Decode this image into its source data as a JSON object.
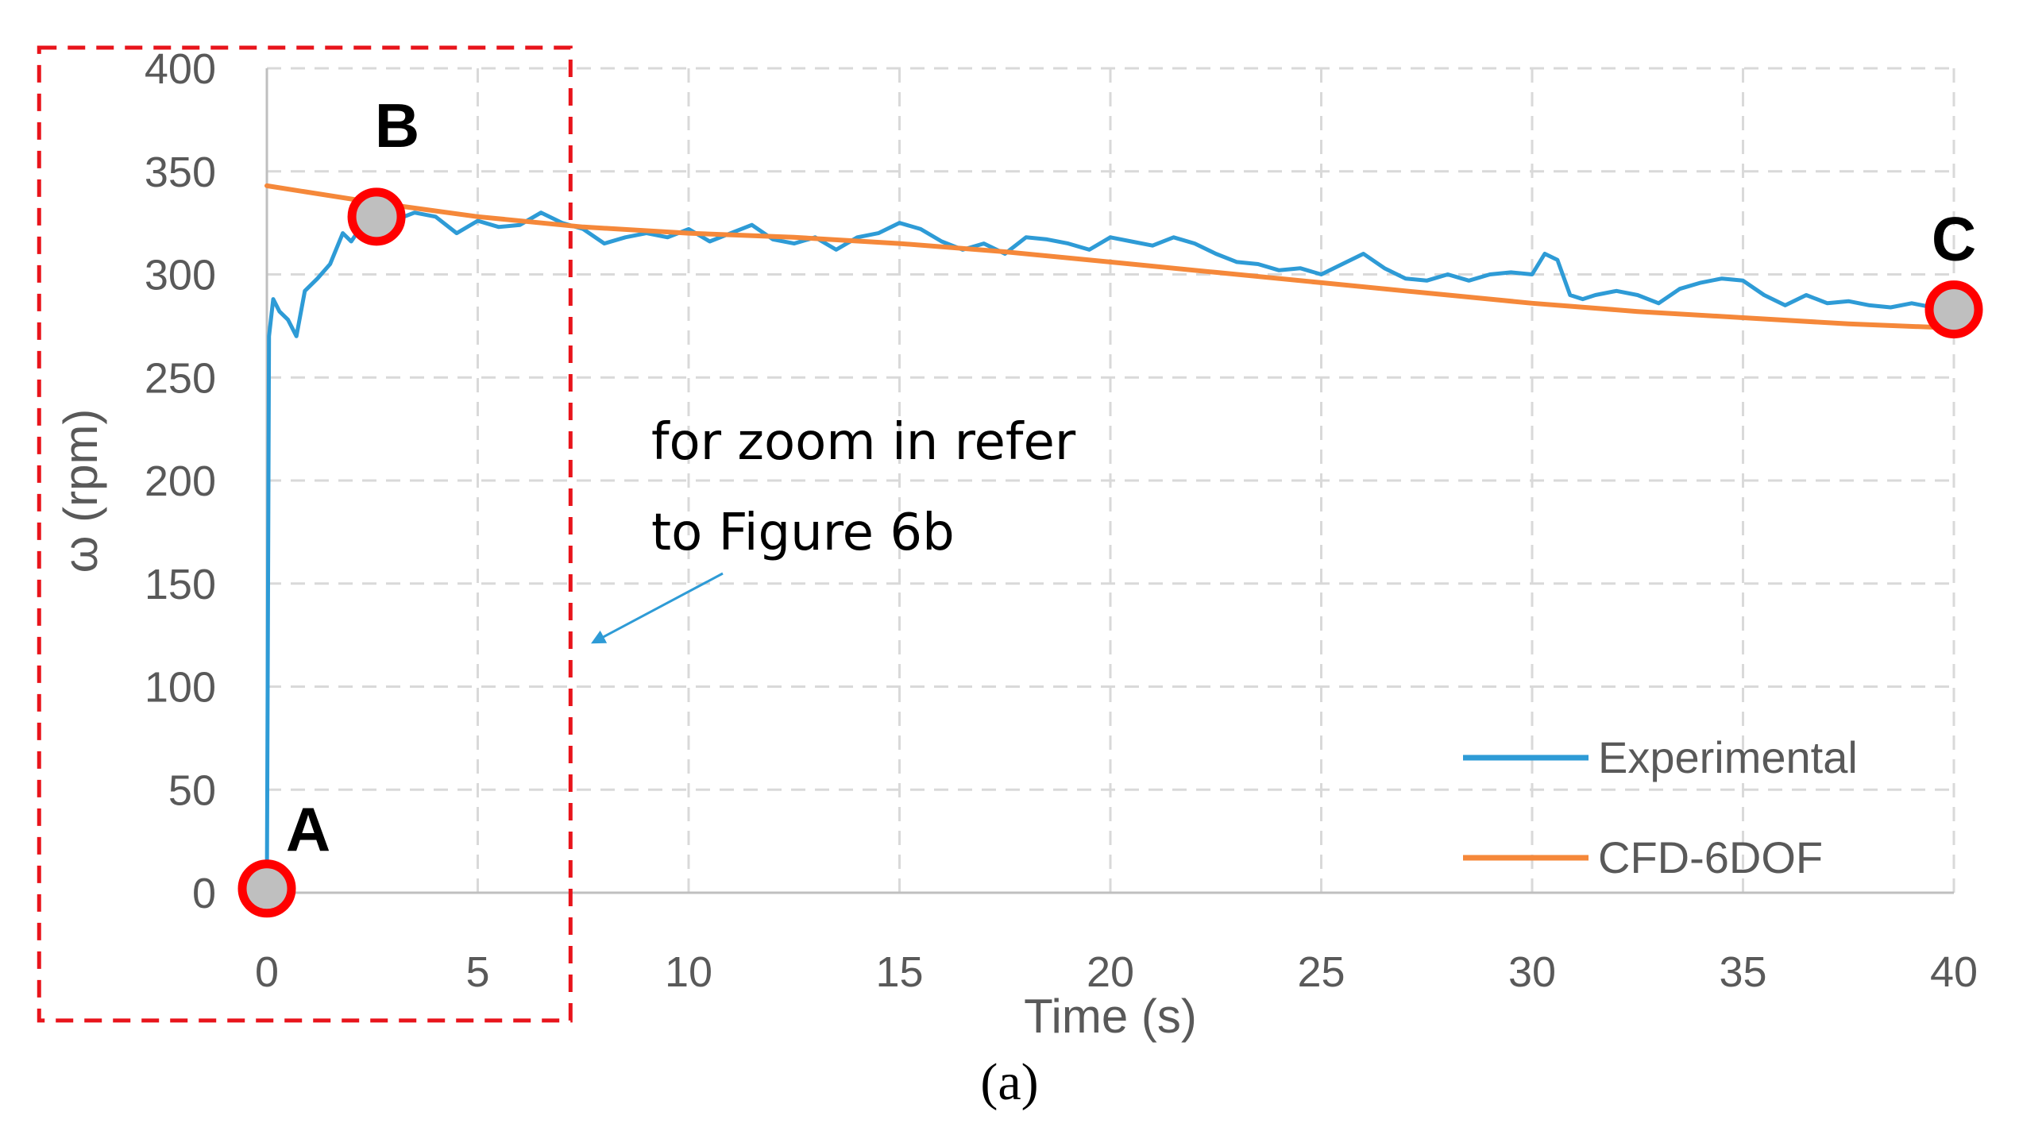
{
  "chart_data": {
    "type": "line",
    "xlabel": "Time (s)",
    "ylabel": "ω (rpm)",
    "xlim": [
      0,
      40
    ],
    "ylim": [
      0,
      400
    ],
    "x_ticks": [
      "0",
      "5",
      "10",
      "15",
      "20",
      "25",
      "30",
      "35",
      "40"
    ],
    "y_ticks": [
      "0",
      "50",
      "100",
      "150",
      "200",
      "250",
      "300",
      "350",
      "400"
    ],
    "grid": true,
    "legend_position": "bottom-right",
    "series": [
      {
        "name": "Experimental",
        "color": "#2E9BD6",
        "x": [
          0,
          0.05,
          0.15,
          0.3,
          0.5,
          0.7,
          0.9,
          1.2,
          1.5,
          1.8,
          2.0,
          2.3,
          2.6,
          3.0,
          3.5,
          4.0,
          4.5,
          5.0,
          5.5,
          6.0,
          6.5,
          7.0,
          7.5,
          8.0,
          8.5,
          9.0,
          9.5,
          10.0,
          10.5,
          11.0,
          11.5,
          12.0,
          12.5,
          13.0,
          13.5,
          14.0,
          14.5,
          15.0,
          15.5,
          16.0,
          16.5,
          17.0,
          17.5,
          18.0,
          18.5,
          19.0,
          19.5,
          20.0,
          20.5,
          21.0,
          21.5,
          22.0,
          22.5,
          23.0,
          23.5,
          24.0,
          24.5,
          25.0,
          25.5,
          26.0,
          26.5,
          27.0,
          27.5,
          28.0,
          28.5,
          29.0,
          29.5,
          30.0,
          30.3,
          30.6,
          30.9,
          31.2,
          31.5,
          32.0,
          32.5,
          33.0,
          33.5,
          34.0,
          34.5,
          35.0,
          35.5,
          36.0,
          36.5,
          37.0,
          37.5,
          38.0,
          38.5,
          39.0,
          39.5,
          40.0
        ],
        "values": [
          0,
          270,
          288,
          282,
          278,
          270,
          292,
          298,
          305,
          320,
          316,
          325,
          328,
          326,
          330,
          328,
          320,
          326,
          323,
          324,
          330,
          325,
          322,
          315,
          318,
          320,
          318,
          322,
          316,
          320,
          324,
          317,
          315,
          318,
          312,
          318,
          320,
          325,
          322,
          316,
          312,
          315,
          310,
          318,
          317,
          315,
          312,
          318,
          316,
          314,
          318,
          315,
          310,
          306,
          305,
          302,
          303,
          300,
          305,
          310,
          303,
          298,
          297,
          300,
          297,
          300,
          301,
          300,
          310,
          307,
          290,
          288,
          290,
          292,
          290,
          286,
          293,
          296,
          298,
          297,
          290,
          285,
          290,
          286,
          287,
          285,
          284,
          286,
          284,
          286
        ]
      },
      {
        "name": "CFD-6DOF",
        "color": "#F5883A",
        "x": [
          0,
          2.5,
          5,
          7.5,
          10,
          12.5,
          15,
          17.5,
          20,
          22.5,
          25,
          27.5,
          30,
          32.5,
          35,
          37.5,
          40
        ],
        "values": [
          343,
          335,
          328,
          323,
          320,
          318,
          315,
          311,
          306,
          301,
          296,
          291,
          286,
          282,
          279,
          276,
          274
        ]
      }
    ],
    "annotations": [
      {
        "label": "A",
        "x": 0,
        "y": 2
      },
      {
        "label": "B",
        "x": 2.6,
        "y": 328
      },
      {
        "label": "C",
        "x": 40,
        "y": 283
      }
    ],
    "note_lines": [
      "for zoom in refer",
      "to Figure 6b"
    ],
    "zoom_region_x": [
      -5.4,
      7.2
    ],
    "zoom_region_y": [
      -62,
      410
    ]
  },
  "caption": "(a)"
}
